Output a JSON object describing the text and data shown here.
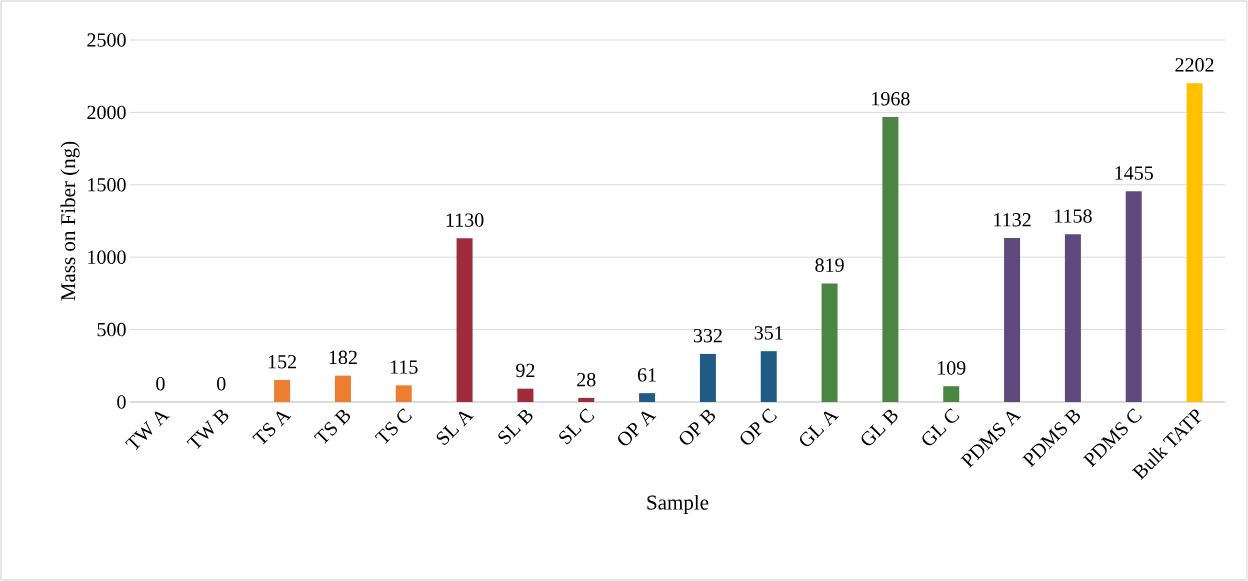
{
  "chart_data": {
    "type": "bar",
    "xlabel": "Sample",
    "ylabel": "Mass on Fiber (ng)",
    "categories": [
      "TW A",
      "TW B",
      "TS A",
      "TS B",
      "TS C",
      "SL A",
      "SL B",
      "SL C",
      "OP A",
      "OP B",
      "OP C",
      "GL A",
      "GL B",
      "GL C",
      "PDMS A",
      "PDMS B",
      "PDMS C",
      "Bulk TATP"
    ],
    "values": [
      0,
      0,
      152,
      182,
      115,
      1130,
      92,
      28,
      61,
      332,
      351,
      819,
      1968,
      109,
      1132,
      1158,
      1455,
      2202
    ],
    "colors": [
      "#ed7d31",
      "#ed7d31",
      "#ed7d31",
      "#ed7d31",
      "#ed7d31",
      "#a02b3c",
      "#a02b3c",
      "#a02b3c",
      "#1f5b82",
      "#1f5b82",
      "#1f5b82",
      "#4a8542",
      "#4a8542",
      "#4a8542",
      "#5f487c",
      "#5f487c",
      "#5f487c",
      "#ffc000"
    ],
    "ylim": [
      0,
      2500
    ],
    "yticks": [
      0,
      500,
      1000,
      1500,
      2000,
      2500
    ],
    "grid": "y",
    "data_labels": true
  }
}
